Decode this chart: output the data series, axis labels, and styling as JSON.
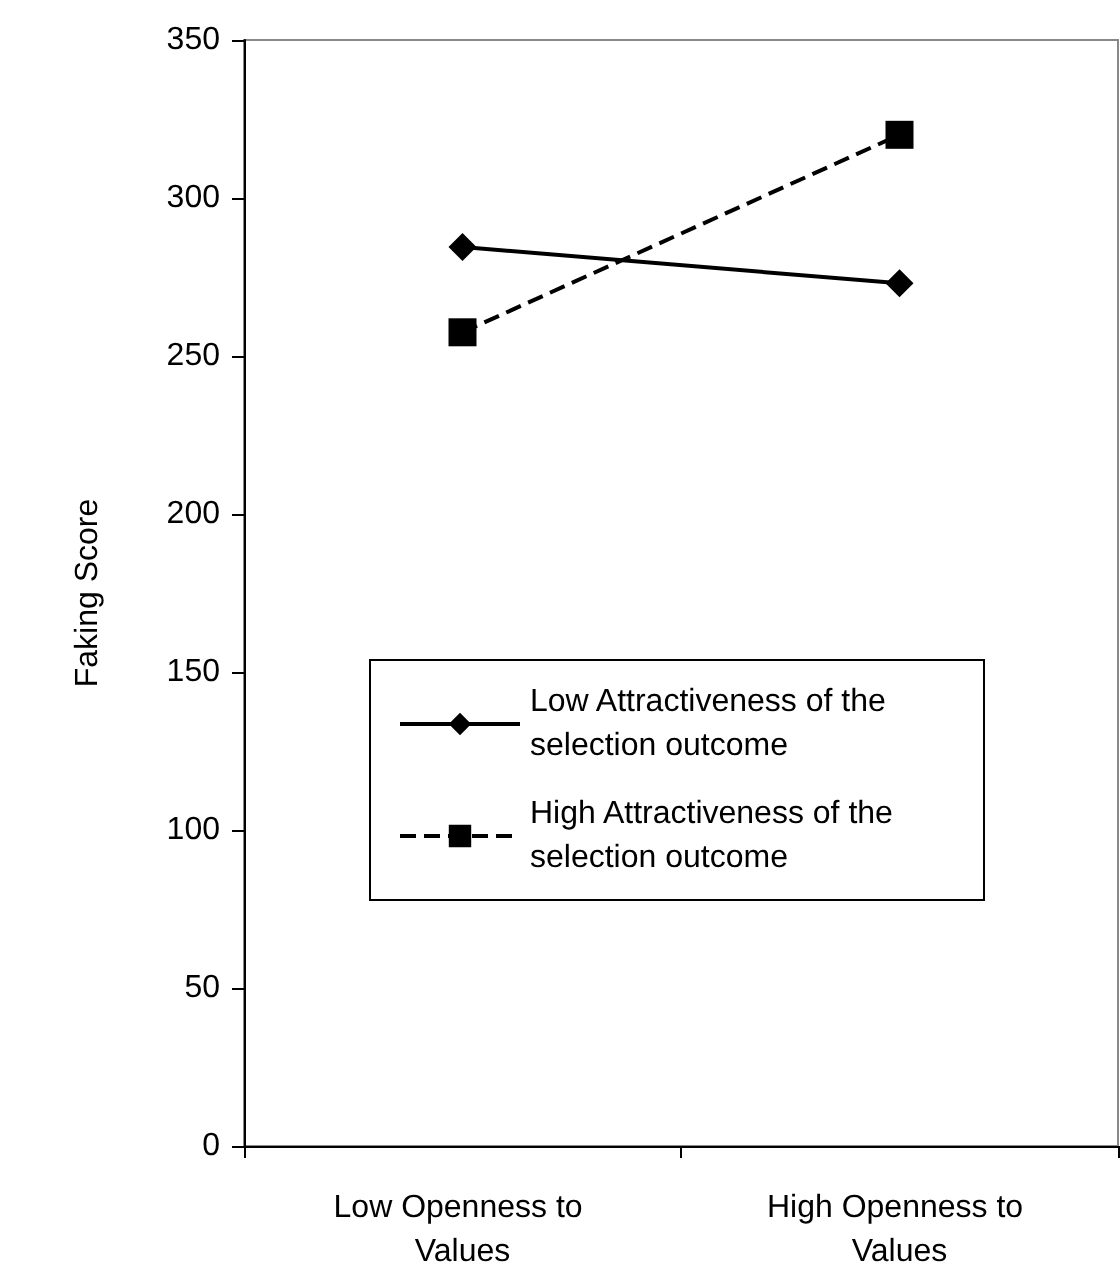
{
  "chart_data": {
    "type": "line",
    "ylabel": "Faking Score",
    "categories": [
      "Low Openness to Values",
      "High Openness to Values"
    ],
    "series": [
      {
        "name": "Low Attractiveness of the selection outcome",
        "color": "#000000",
        "values": [
          284.5,
          273
        ],
        "marker": "diamond",
        "line_style": "solid"
      },
      {
        "name": "High Attractiveness of the selection outcome",
        "color": "#000000",
        "values": [
          257.5,
          320
        ],
        "marker": "square",
        "line_style": "dashed"
      }
    ],
    "ylim": [
      0,
      350
    ],
    "yticks": [
      0,
      50,
      100,
      150,
      200,
      250,
      300,
      350
    ],
    "grid": false,
    "legend": "bottom right"
  }
}
